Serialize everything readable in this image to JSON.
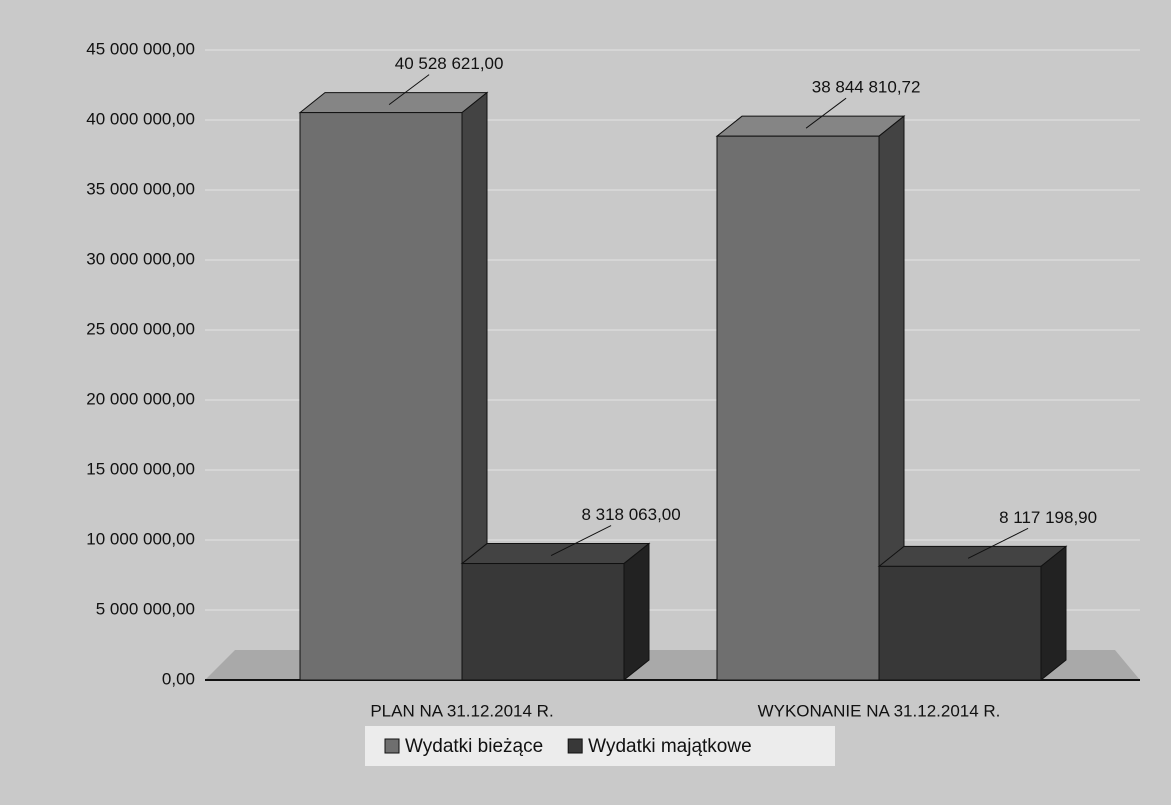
{
  "chart_data": {
    "type": "bar3d",
    "categories": [
      "PLAN NA 31.12.2014 R.",
      "WYKONANIE NA 31.12.2014 R."
    ],
    "series": [
      {
        "name": "Wydatki bieżące",
        "color": "#6f6f6f",
        "values": [
          40528621,
          38844810.72
        ],
        "value_labels": [
          "40 528 621,00",
          "38 844 810,72"
        ]
      },
      {
        "name": "Wydatki majątkowe",
        "color": "#383838",
        "values": [
          8318063,
          8117198.9
        ],
        "value_labels": [
          "8 318 063,00",
          "8 117 198,90"
        ]
      }
    ],
    "ylim": [
      0,
      45000000
    ],
    "yticks": [
      {
        "value": 0,
        "label": "0,00"
      },
      {
        "value": 5000000,
        "label": "5 000 000,00"
      },
      {
        "value": 10000000,
        "label": "10 000 000,00"
      },
      {
        "value": 15000000,
        "label": "15 000 000,00"
      },
      {
        "value": 20000000,
        "label": "20 000 000,00"
      },
      {
        "value": 25000000,
        "label": "25 000 000,00"
      },
      {
        "value": 30000000,
        "label": "30 000 000,00"
      },
      {
        "value": 35000000,
        "label": "35 000 000,00"
      },
      {
        "value": 40000000,
        "label": "40 000 000,00"
      },
      {
        "value": 45000000,
        "label": "45 000 000,00"
      }
    ],
    "grid": true,
    "legend": "bottom"
  }
}
